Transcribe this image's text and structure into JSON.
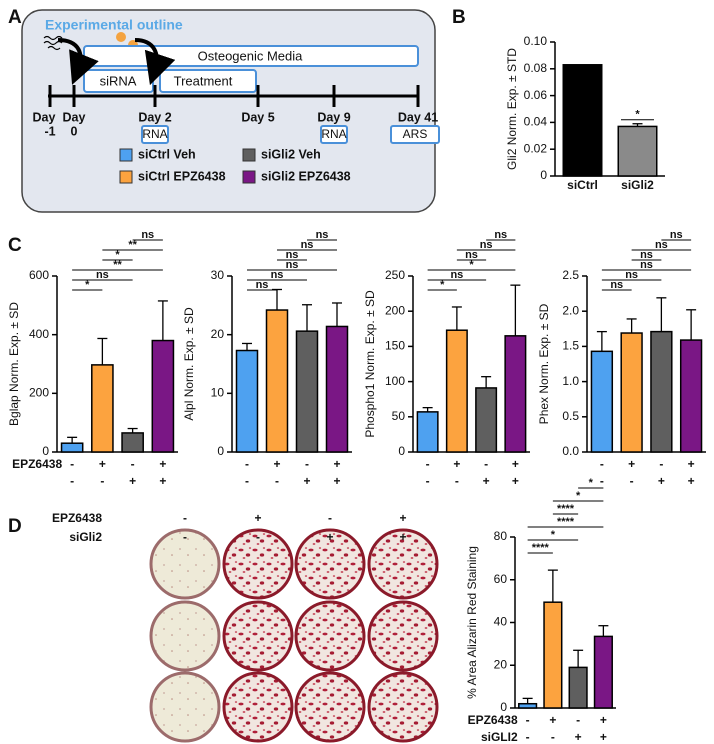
{
  "panel_labels": [
    "A",
    "B",
    "C",
    "D"
  ],
  "diagram": {
    "title": "Experimental outline",
    "media": "Osteogenic Media",
    "sirna": "siRNA",
    "treatment": "Treatment",
    "days": [
      [
        "Day",
        "-1"
      ],
      [
        "Day",
        "0"
      ],
      [
        "Day 2"
      ],
      [
        "Day 5"
      ],
      [
        "Day 9"
      ],
      [
        "Day 41"
      ]
    ],
    "day_boxes": [
      "RNA",
      "RNA",
      "ARS"
    ],
    "legend": [
      {
        "name": "siCtrl  Veh",
        "color": "#4ea1f0"
      },
      {
        "name": "siGli2  Veh",
        "color": "#5f5f5f"
      },
      {
        "name": "siCtrl  EPZ6438",
        "color": "#fca33f"
      },
      {
        "name": "siGli2  EPZ6438",
        "color": "#7a1785"
      }
    ]
  },
  "plates": {
    "rows": [
      {
        "label": "EPZ6438",
        "signs": [
          "-",
          "+",
          "-",
          "+"
        ]
      },
      {
        "label": "siGli2",
        "signs": [
          "-",
          "-",
          "+",
          "+"
        ]
      }
    ]
  },
  "chart_data": [
    {
      "type": "bar",
      "y_label": "Gli2 Norm. Exp. ± STD",
      "categories": [
        "siCtrl",
        "siGli2"
      ],
      "values": [
        0.083,
        0.037
      ],
      "colors": [
        "#000000",
        "#8a8a8a"
      ],
      "errors": [
        0,
        0.002
      ],
      "ylim": [
        0,
        0.1
      ],
      "yticks": [
        0,
        0.02,
        0.04,
        0.06,
        0.08,
        {
          "value": 0.1,
          "label": "0.10"
        }
      ],
      "significance": [
        "*"
      ]
    },
    {
      "type": "bar",
      "y_label": "Bglap Norm. Exp. ± SD",
      "values": [
        30,
        297,
        65,
        380
      ],
      "errors": [
        20,
        90,
        15,
        135
      ],
      "colors": [
        "#4ea1f0",
        "#fca33f",
        "#5f5f5f",
        "#7a1785"
      ],
      "ylim": [
        0,
        600
      ],
      "yticks": [
        0,
        200,
        400,
        600
      ],
      "significance": [
        "*",
        "ns",
        "**",
        "*",
        "**",
        "ns"
      ],
      "treatment_rows": [
        {
          "label": "EPZ6438",
          "signs": [
            "-",
            "+",
            "-",
            "+"
          ]
        },
        {
          "label": null,
          "signs": [
            "-",
            "-",
            "+",
            "+"
          ]
        }
      ]
    },
    {
      "type": "bar",
      "y_label": "Alpl Norm. Exp. ± SD",
      "values": [
        17.3,
        24.2,
        20.6,
        21.4
      ],
      "errors": [
        1.2,
        3.5,
        4.5,
        4
      ],
      "colors": [
        "#4ea1f0",
        "#fca33f",
        "#5f5f5f",
        "#7a1785"
      ],
      "ylim": [
        0,
        30
      ],
      "yticks": [
        0,
        10,
        20,
        30
      ],
      "significance": [
        "ns",
        "ns",
        "ns",
        "ns",
        "ns",
        "ns"
      ],
      "treatment_rows": [
        {
          "label": null,
          "signs": [
            "-",
            "+",
            "-",
            "+"
          ]
        },
        {
          "label": null,
          "signs": [
            "-",
            "-",
            "+",
            "+"
          ]
        }
      ]
    },
    {
      "type": "bar",
      "y_label": "Phospho1 Norm. Exp. ± SD",
      "values": [
        57,
        173,
        91,
        165
      ],
      "errors": [
        6,
        33,
        16,
        72
      ],
      "colors": [
        "#4ea1f0",
        "#fca33f",
        "#5f5f5f",
        "#7a1785"
      ],
      "ylim": [
        0,
        250
      ],
      "yticks": [
        0,
        50,
        100,
        150,
        200,
        250
      ],
      "significance": [
        "*",
        "ns",
        "*",
        "ns",
        "ns",
        "ns"
      ],
      "treatment_rows": [
        {
          "label": null,
          "signs": [
            "-",
            "+",
            "-",
            "+"
          ]
        },
        {
          "label": null,
          "signs": [
            "-",
            "-",
            "+",
            "+"
          ]
        }
      ]
    },
    {
      "type": "bar",
      "y_label": "Phex Norm. Exp. ± SD",
      "values": [
        1.43,
        1.69,
        1.71,
        1.59
      ],
      "errors": [
        0.28,
        0.2,
        0.48,
        0.43
      ],
      "colors": [
        "#4ea1f0",
        "#fca33f",
        "#5f5f5f",
        "#7a1785"
      ],
      "ylim": [
        0,
        2.5
      ],
      "yticks": [
        {
          "value": 0,
          "label": "0.0"
        },
        0.5,
        {
          "value": 1,
          "label": "1.0"
        },
        1.5,
        {
          "value": 2,
          "label": "2.0"
        },
        2.5
      ],
      "significance": [
        "ns",
        "ns",
        "ns",
        "ns",
        "ns",
        "ns"
      ],
      "treatment_rows": [
        {
          "label": null,
          "signs": [
            "-",
            "+",
            "-",
            "+"
          ]
        },
        {
          "label": null,
          "signs": [
            "-",
            "-",
            "+",
            "+"
          ]
        }
      ]
    },
    {
      "type": "bar",
      "y_label": "% Area Alizarin Red Staining",
      "values": [
        2,
        49.5,
        19,
        33.5
      ],
      "errors": [
        2.5,
        15,
        8,
        5
      ],
      "colors": [
        "#4ea1f0",
        "#fca33f",
        "#5f5f5f",
        "#7a1785"
      ],
      "ylim": [
        0,
        80
      ],
      "yticks": [
        0,
        20,
        40,
        60,
        80
      ],
      "significance": [
        "****",
        "*",
        "****",
        "****",
        "*",
        "*"
      ],
      "treatment_rows": [
        {
          "label": "EPZ6438",
          "signs": [
            "-",
            "+",
            "-",
            "+"
          ]
        },
        {
          "label": "siGLI2",
          "signs": [
            "-",
            "-",
            "+",
            "+"
          ]
        }
      ]
    }
  ]
}
